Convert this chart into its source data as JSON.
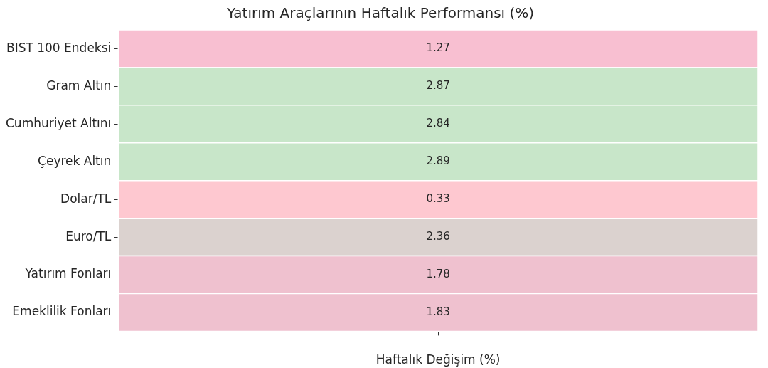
{
  "chart_data": {
    "type": "heatmap",
    "title": "Yatırım Araçlarının Haftalık Performansı (%)",
    "xlabel": "Haftalık Değişim (%)",
    "categories": [
      null
    ],
    "y_categories": [
      "BIST 100 Endeksi",
      "Gram Altın",
      "Cumhuriyet Altını",
      "Çeyrek Altın",
      "Dolar/TL",
      "Euro/TL",
      "Yatırım Fonları",
      "Emeklilik Fonları"
    ],
    "cells": [
      [
        1.27
      ],
      [
        2.87
      ],
      [
        2.84
      ],
      [
        2.89
      ],
      [
        0.33
      ],
      [
        2.36
      ],
      [
        1.78
      ],
      [
        1.83
      ]
    ],
    "colors": [
      "#f8bfd1",
      "#c8e6c9",
      "#c8e6c9",
      "#c8e6c9",
      "#fec8d0",
      "#dbd2cf",
      "#efc1cf",
      "#efc1cf"
    ],
    "data_labels": true
  }
}
